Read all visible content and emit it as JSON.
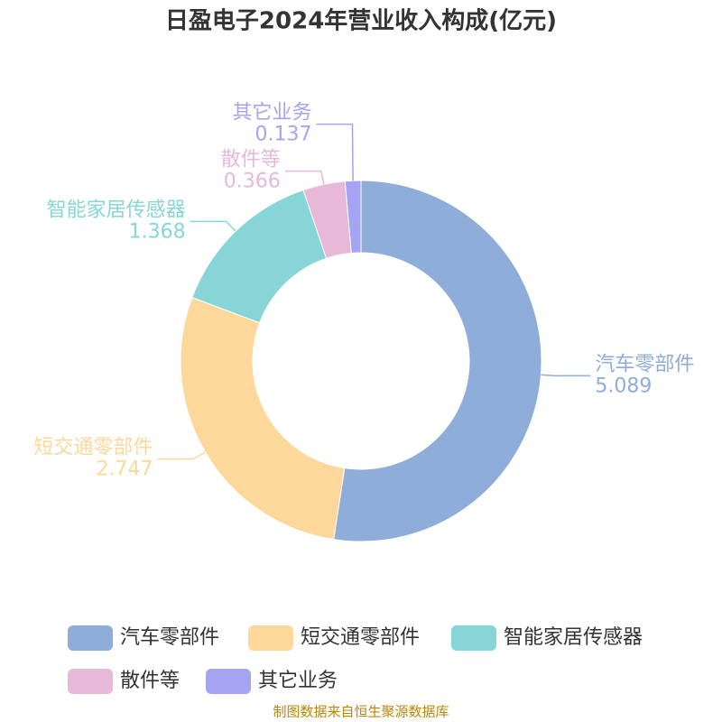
{
  "chart_data": {
    "type": "pie",
    "title": "日盈电子2024年营业收入构成(亿元)",
    "categories": [
      "汽车零部件",
      "短交通零部件",
      "智能家居传感器",
      "散件等",
      "其它业务"
    ],
    "values": [
      5.089,
      2.747,
      1.368,
      0.366,
      0.137
    ],
    "colors": [
      "#8eadd9",
      "#fdd89a",
      "#88d5d7",
      "#e7b8d7",
      "#a4a4f2"
    ],
    "source": "制图数据来自恒生聚源数据库"
  }
}
